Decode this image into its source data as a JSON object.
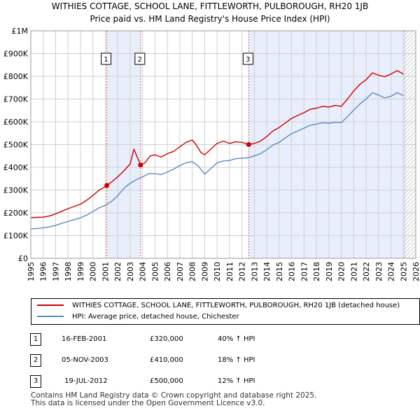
{
  "chart_data": {
    "type": "line",
    "title": "WITHIES COTTAGE, SCHOOL LANE, FITTLEWORTH, PULBOROUGH, RH20 1JB",
    "subtitle": "Price paid vs. HM Land Registry's House Price Index (HPI)",
    "xlim": [
      1995,
      2026
    ],
    "ylim": [
      0,
      1000000
    ],
    "x_ticks": [
      "1995",
      "1996",
      "1997",
      "1998",
      "1999",
      "2000",
      "2001",
      "2002",
      "2003",
      "2004",
      "2005",
      "2006",
      "2007",
      "2008",
      "2009",
      "2010",
      "2011",
      "2012",
      "2013",
      "2014",
      "2015",
      "2016",
      "2017",
      "2018",
      "2019",
      "2020",
      "2021",
      "2022",
      "2023",
      "2024",
      "2025",
      "2026"
    ],
    "y_ticks": [
      {
        "value": 0,
        "label": "£0"
      },
      {
        "value": 100000,
        "label": "£100K"
      },
      {
        "value": 200000,
        "label": "£200K"
      },
      {
        "value": 300000,
        "label": "£300K"
      },
      {
        "value": 400000,
        "label": "£400K"
      },
      {
        "value": 500000,
        "label": "£500K"
      },
      {
        "value": 600000,
        "label": "£600K"
      },
      {
        "value": 700000,
        "label": "£700K"
      },
      {
        "value": 800000,
        "label": "£800K"
      },
      {
        "value": 900000,
        "label": "£900K"
      },
      {
        "value": 1000000,
        "label": "£1M"
      }
    ],
    "grid": true,
    "shaded_ranges": [
      [
        2001.12,
        2003.84
      ],
      [
        2012.55,
        2025.2
      ]
    ],
    "future_hatch_from": 2025.0,
    "series": [
      {
        "name": "WITHIES COTTAGE, SCHOOL LANE, FITTLEWORTH, PULBOROUGH, RH20 1JB (detached house)",
        "color": "#cc0000",
        "points": [
          [
            1995.0,
            178000
          ],
          [
            1995.5,
            180000
          ],
          [
            1996.0,
            181000
          ],
          [
            1996.5,
            186000
          ],
          [
            1997.0,
            195000
          ],
          [
            1997.5,
            207000
          ],
          [
            1998.0,
            218000
          ],
          [
            1998.5,
            228000
          ],
          [
            1999.0,
            238000
          ],
          [
            1999.5,
            255000
          ],
          [
            2000.0,
            276000
          ],
          [
            2000.5,
            300000
          ],
          [
            2001.0,
            315000
          ],
          [
            2001.5,
            335000
          ],
          [
            2002.0,
            358000
          ],
          [
            2002.5,
            385000
          ],
          [
            2003.0,
            415000
          ],
          [
            2003.3,
            480000
          ],
          [
            2003.84,
            410000
          ],
          [
            2004.2,
            420000
          ],
          [
            2004.6,
            450000
          ],
          [
            2005.0,
            455000
          ],
          [
            2005.5,
            445000
          ],
          [
            2006.0,
            460000
          ],
          [
            2006.5,
            470000
          ],
          [
            2007.0,
            490000
          ],
          [
            2007.5,
            510000
          ],
          [
            2008.0,
            520000
          ],
          [
            2008.3,
            500000
          ],
          [
            2008.7,
            465000
          ],
          [
            2009.0,
            455000
          ],
          [
            2009.5,
            480000
          ],
          [
            2010.0,
            505000
          ],
          [
            2010.5,
            515000
          ],
          [
            2011.0,
            505000
          ],
          [
            2011.5,
            512000
          ],
          [
            2012.0,
            510000
          ],
          [
            2012.55,
            500000
          ],
          [
            2013.0,
            505000
          ],
          [
            2013.5,
            515000
          ],
          [
            2014.0,
            535000
          ],
          [
            2014.5,
            560000
          ],
          [
            2015.0,
            575000
          ],
          [
            2015.5,
            595000
          ],
          [
            2016.0,
            615000
          ],
          [
            2016.5,
            628000
          ],
          [
            2017.0,
            640000
          ],
          [
            2017.5,
            655000
          ],
          [
            2018.0,
            660000
          ],
          [
            2018.5,
            668000
          ],
          [
            2019.0,
            665000
          ],
          [
            2019.5,
            672000
          ],
          [
            2020.0,
            668000
          ],
          [
            2020.5,
            700000
          ],
          [
            2021.0,
            735000
          ],
          [
            2021.5,
            765000
          ],
          [
            2022.0,
            785000
          ],
          [
            2022.5,
            815000
          ],
          [
            2023.0,
            805000
          ],
          [
            2023.5,
            798000
          ],
          [
            2024.0,
            810000
          ],
          [
            2024.5,
            825000
          ],
          [
            2025.0,
            810000
          ]
        ]
      },
      {
        "name": "HPI: Average price, detached house, Chichester",
        "color": "#5b8ac6",
        "points": [
          [
            1995.0,
            130000
          ],
          [
            1995.5,
            131000
          ],
          [
            1996.0,
            134000
          ],
          [
            1996.5,
            138000
          ],
          [
            1997.0,
            145000
          ],
          [
            1997.5,
            154000
          ],
          [
            1998.0,
            162000
          ],
          [
            1998.5,
            170000
          ],
          [
            1999.0,
            178000
          ],
          [
            1999.5,
            190000
          ],
          [
            2000.0,
            206000
          ],
          [
            2000.5,
            222000
          ],
          [
            2001.0,
            233000
          ],
          [
            2001.5,
            250000
          ],
          [
            2002.0,
            275000
          ],
          [
            2002.5,
            308000
          ],
          [
            2003.0,
            330000
          ],
          [
            2003.5,
            346000
          ],
          [
            2004.0,
            358000
          ],
          [
            2004.5,
            372000
          ],
          [
            2005.0,
            372000
          ],
          [
            2005.5,
            368000
          ],
          [
            2006.0,
            380000
          ],
          [
            2006.5,
            392000
          ],
          [
            2007.0,
            408000
          ],
          [
            2007.5,
            420000
          ],
          [
            2008.0,
            425000
          ],
          [
            2008.5,
            405000
          ],
          [
            2009.0,
            370000
          ],
          [
            2009.5,
            395000
          ],
          [
            2010.0,
            420000
          ],
          [
            2010.5,
            428000
          ],
          [
            2011.0,
            430000
          ],
          [
            2011.5,
            438000
          ],
          [
            2012.0,
            440000
          ],
          [
            2012.5,
            442000
          ],
          [
            2013.0,
            450000
          ],
          [
            2013.5,
            460000
          ],
          [
            2014.0,
            478000
          ],
          [
            2014.5,
            498000
          ],
          [
            2015.0,
            510000
          ],
          [
            2015.5,
            530000
          ],
          [
            2016.0,
            548000
          ],
          [
            2016.5,
            560000
          ],
          [
            2017.0,
            572000
          ],
          [
            2017.5,
            585000
          ],
          [
            2018.0,
            590000
          ],
          [
            2018.5,
            596000
          ],
          [
            2019.0,
            594000
          ],
          [
            2019.5,
            598000
          ],
          [
            2020.0,
            596000
          ],
          [
            2020.5,
            622000
          ],
          [
            2021.0,
            652000
          ],
          [
            2021.5,
            678000
          ],
          [
            2022.0,
            700000
          ],
          [
            2022.5,
            728000
          ],
          [
            2023.0,
            718000
          ],
          [
            2023.5,
            705000
          ],
          [
            2024.0,
            712000
          ],
          [
            2024.5,
            728000
          ],
          [
            2025.0,
            715000
          ]
        ]
      }
    ],
    "sales": [
      {
        "num": "1",
        "x": 2001.12,
        "price": 320000
      },
      {
        "num": "2",
        "x": 2003.84,
        "price": 410000
      },
      {
        "num": "3",
        "x": 2012.55,
        "price": 500000
      }
    ]
  },
  "legend": {
    "property_label": "WITHIES COTTAGE, SCHOOL LANE, FITTLEWORTH, PULBOROUGH, RH20 1JB (detached house)",
    "hpi_label": "HPI: Average price, detached house, Chichester"
  },
  "sales_table": [
    {
      "num": "1",
      "date": "16-FEB-2001",
      "price": "£320,000",
      "hpi": "40% ↑ HPI"
    },
    {
      "num": "2",
      "date": "05-NOV-2003",
      "price": "£410,000",
      "hpi": "18% ↑ HPI"
    },
    {
      "num": "3",
      "date": "19-JUL-2012",
      "price": "£500,000",
      "hpi": "12% ↑ HPI"
    }
  ],
  "footer": {
    "line1": "Contains HM Land Registry data © Crown copyright and database right 2025.",
    "line2": "This data is licensed under the Open Government Licence v3.0."
  }
}
